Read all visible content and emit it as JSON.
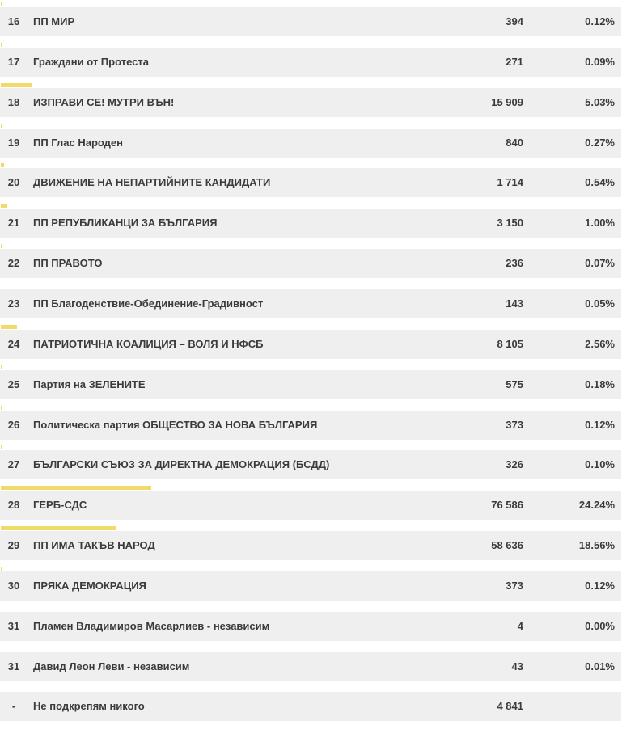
{
  "accent_color": "#f1d96a",
  "rows": [
    {
      "num": "16",
      "party": "ПП МИР",
      "votes": "394",
      "percent": "0.12%",
      "share": 0.12
    },
    {
      "num": "17",
      "party": "Граждани от Протеста",
      "votes": "271",
      "percent": "0.09%",
      "share": 0.09
    },
    {
      "num": "18",
      "party": "ИЗПРАВИ СЕ! МУТРИ ВЪН!",
      "votes": "15 909",
      "percent": "5.03%",
      "share": 5.03
    },
    {
      "num": "19",
      "party": "ПП Глас Народен",
      "votes": "840",
      "percent": "0.27%",
      "share": 0.27
    },
    {
      "num": "20",
      "party": "ДВИЖЕНИЕ НА НЕПАРТИЙНИТЕ КАНДИДАТИ",
      "votes": "1 714",
      "percent": "0.54%",
      "share": 0.54
    },
    {
      "num": "21",
      "party": "ПП РЕПУБЛИКАНЦИ ЗА БЪЛГАРИЯ",
      "votes": "3 150",
      "percent": "1.00%",
      "share": 1.0
    },
    {
      "num": "22",
      "party": "ПП ПРАВОТО",
      "votes": "236",
      "percent": "0.07%",
      "share": 0.07
    },
    {
      "num": "23",
      "party": "ПП Благоденствие-Обединение-Градивност",
      "votes": "143",
      "percent": "0.05%",
      "share": 0.05
    },
    {
      "num": "24",
      "party": "ПАТРИОТИЧНА КОАЛИЦИЯ – ВОЛЯ И НФСБ",
      "votes": "8 105",
      "percent": "2.56%",
      "share": 2.56
    },
    {
      "num": "25",
      "party": "Партия на ЗЕЛЕНИТЕ",
      "votes": "575",
      "percent": "0.18%",
      "share": 0.18
    },
    {
      "num": "26",
      "party": "Политическа партия  ОБЩЕСТВО ЗА НОВА БЪЛГАРИЯ",
      "votes": "373",
      "percent": "0.12%",
      "share": 0.12
    },
    {
      "num": "27",
      "party": "БЪЛГАРСКИ СЪЮЗ ЗА ДИРЕКТНА ДЕМОКРАЦИЯ (БСДД)",
      "votes": "326",
      "percent": "0.10%",
      "share": 0.1
    },
    {
      "num": "28",
      "party": "ГЕРБ-СДС",
      "votes": "76 586",
      "percent": "24.24%",
      "share": 24.24
    },
    {
      "num": "29",
      "party": "ПП ИМА ТАКЪВ НАРОД",
      "votes": "58 636",
      "percent": "18.56%",
      "share": 18.56
    },
    {
      "num": "30",
      "party": "ПРЯКА ДЕМОКРАЦИЯ",
      "votes": "373",
      "percent": "0.12%",
      "share": 0.12
    },
    {
      "num": "31",
      "party": "Пламен Владимиров Масарлиев - независим",
      "votes": "4",
      "percent": "0.00%",
      "share": 0.0
    },
    {
      "num": "31",
      "party": "Давид Леон Леви - независим",
      "votes": "43",
      "percent": "0.01%",
      "share": 0.01
    },
    {
      "num": "-",
      "party": "Не подкрепям никого",
      "votes": "4 841",
      "percent": "",
      "share": 0
    }
  ]
}
